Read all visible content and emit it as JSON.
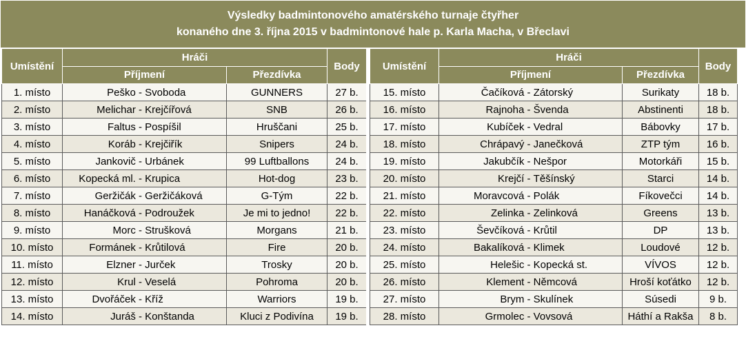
{
  "title": {
    "line1": "Výsledky badmintonového amatérského turnaje čtyřher",
    "line2": "konaného dne 3. října 2015 v badmintonové hale p. Karla Macha, v Břeclavi"
  },
  "headers": {
    "rank": "Umístění",
    "players": "Hráči",
    "surnames": "Příjmení",
    "nickname": "Přezdívka",
    "points": "Body"
  },
  "left_rows": [
    {
      "rank": "1. místo",
      "p1": "Peško",
      "p2": "Svoboda",
      "nick": "GUNNERS",
      "pts": "27 b."
    },
    {
      "rank": "2. místo",
      "p1": "Melichar",
      "p2": "Krejčířová",
      "nick": "SNB",
      "pts": "26 b."
    },
    {
      "rank": "3. místo",
      "p1": "Faltus",
      "p2": "Pospíšil",
      "nick": "Hruščani",
      "pts": "25 b."
    },
    {
      "rank": "4. místo",
      "p1": "Koráb",
      "p2": "Krejčiřík",
      "nick": "Snipers",
      "pts": "24 b."
    },
    {
      "rank": "5. místo",
      "p1": "Jankovič",
      "p2": "Urbánek",
      "nick": "99 Luftballons",
      "pts": "24 b."
    },
    {
      "rank": "6. místo",
      "p1": "Kopecká ml.",
      "p2": "Krupica",
      "nick": "Hot-dog",
      "pts": "23 b."
    },
    {
      "rank": "7. místo",
      "p1": "Geržičák",
      "p2": "Geržičáková",
      "nick": "G-Tým",
      "pts": "22 b."
    },
    {
      "rank": "8. místo",
      "p1": "Hanáčková",
      "p2": "Podroužek",
      "nick": "Je mi to jedno!",
      "pts": "22 b."
    },
    {
      "rank": "9. místo",
      "p1": "Morc",
      "p2": "Strušková",
      "nick": "Morgans",
      "pts": "21 b."
    },
    {
      "rank": "10. místo",
      "p1": "Formánek",
      "p2": "Krůtilová",
      "nick": "Fire",
      "pts": "20 b."
    },
    {
      "rank": "11. místo",
      "p1": "Elzner",
      "p2": "Jurček",
      "nick": "Trosky",
      "pts": "20 b."
    },
    {
      "rank": "12. místo",
      "p1": "Krul",
      "p2": "Veselá",
      "nick": "Pohroma",
      "pts": "20 b."
    },
    {
      "rank": "13. místo",
      "p1": "Dvořáček",
      "p2": "Kříž",
      "nick": "Warriors",
      "pts": "19 b."
    },
    {
      "rank": "14. místo",
      "p1": "Juráš",
      "p2": "Konštanda",
      "nick": "Kluci z Podivína",
      "pts": "19 b."
    }
  ],
  "right_rows": [
    {
      "rank": "15. místo",
      "p1": "Čačíková",
      "p2": "Zátorský",
      "nick": "Surikaty",
      "pts": "18 b."
    },
    {
      "rank": "16. místo",
      "p1": "Rajnoha",
      "p2": "Švenda",
      "nick": "Abstinenti",
      "pts": "18 b."
    },
    {
      "rank": "17. místo",
      "p1": "Kubíček",
      "p2": "Vedral",
      "nick": "Bábovky",
      "pts": "17 b."
    },
    {
      "rank": "18. místo",
      "p1": "Chrápavý",
      "p2": "Janečková",
      "nick": "ZTP tým",
      "pts": "16 b."
    },
    {
      "rank": "19. místo",
      "p1": "Jakubčík",
      "p2": "Nešpor",
      "nick": "Motorkáři",
      "pts": "15 b."
    },
    {
      "rank": "20. místo",
      "p1": "Krejčí",
      "p2": "Těšínský",
      "nick": "Starci",
      "pts": "14 b."
    },
    {
      "rank": "21. místo",
      "p1": "Moravcová",
      "p2": "Polák",
      "nick": "Fíkovečci",
      "pts": "14 b."
    },
    {
      "rank": "22. místo",
      "p1": "Zelinka",
      "p2": "Zelinková",
      "nick": "Greens",
      "pts": "13 b."
    },
    {
      "rank": "23. místo",
      "p1": "Ševčíková",
      "p2": "Krůtil",
      "nick": "DP",
      "pts": "13 b."
    },
    {
      "rank": "24. místo",
      "p1": "Bakalíková",
      "p2": "Klimek",
      "nick": "Loudové",
      "pts": "12 b."
    },
    {
      "rank": "25. místo",
      "p1": "Helešic",
      "p2": "Kopecká st.",
      "nick": "VÍVOS",
      "pts": "12 b."
    },
    {
      "rank": "26. místo",
      "p1": "Klement",
      "p2": "Němcová",
      "nick": "Hroší koťátko",
      "pts": "12 b."
    },
    {
      "rank": "27. místo",
      "p1": "Brym",
      "p2": "Skulínek",
      "nick": "Súsedi",
      "pts": "9 b."
    },
    {
      "rank": "28. místo",
      "p1": "Grmolec",
      "p2": "Vovsová",
      "nick": "Háthí a Rakša",
      "pts": "8 b."
    }
  ],
  "colors": {
    "header_bg": "#8b8a5c",
    "row_alt": "#ebe8dd",
    "row_base": "#f7f6f1"
  }
}
